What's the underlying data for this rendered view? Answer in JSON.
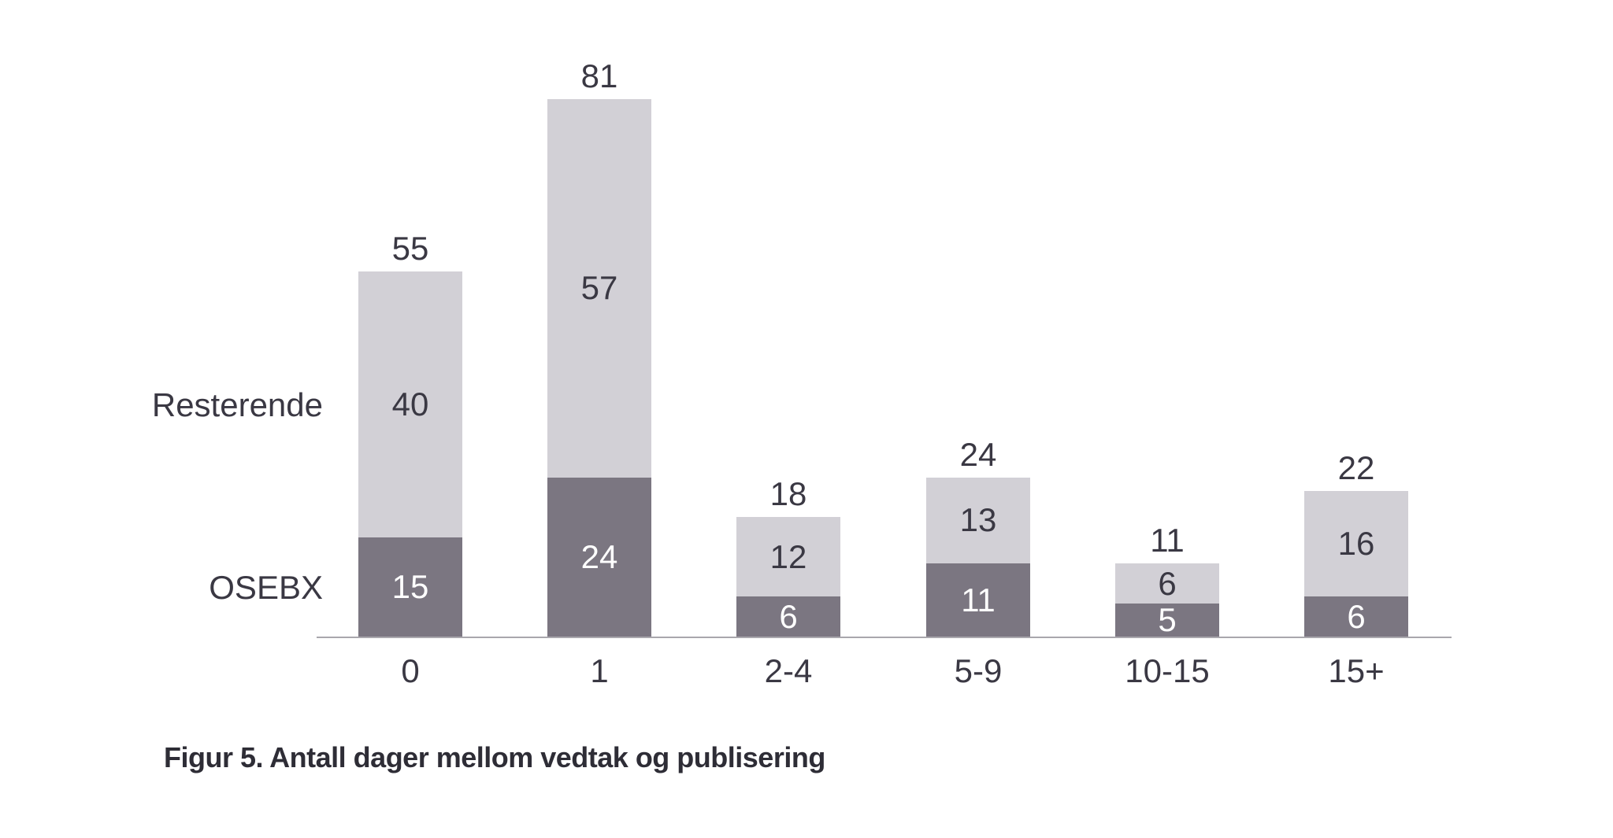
{
  "chart_data": {
    "type": "bar",
    "stacked": true,
    "title": "Figur 5. Antall dager mellom vedtak og publisering",
    "categories": [
      "0",
      "1",
      "2-4",
      "5-9",
      "10-15",
      "15+"
    ],
    "series": [
      {
        "name": "OSEBX",
        "values": [
          15,
          24,
          6,
          11,
          5,
          6
        ],
        "color": "#7b7681",
        "label_color": "#ffffff"
      },
      {
        "name": "Resterende",
        "values": [
          40,
          57,
          12,
          13,
          6,
          16
        ],
        "color": "#d2d0d6",
        "label_color": "#3a3843"
      }
    ],
    "totals": [
      55,
      81,
      18,
      24,
      11,
      22
    ],
    "xlabel": "",
    "ylabel": "",
    "ylim": [
      0,
      85
    ],
    "grid": false,
    "legend_position": "left-of-first-bar",
    "value_labels": "inside-segments-and-total-above",
    "axis_line_color": "#a9a7ad",
    "text_color": "#3a3843",
    "background": "#ffffff"
  }
}
